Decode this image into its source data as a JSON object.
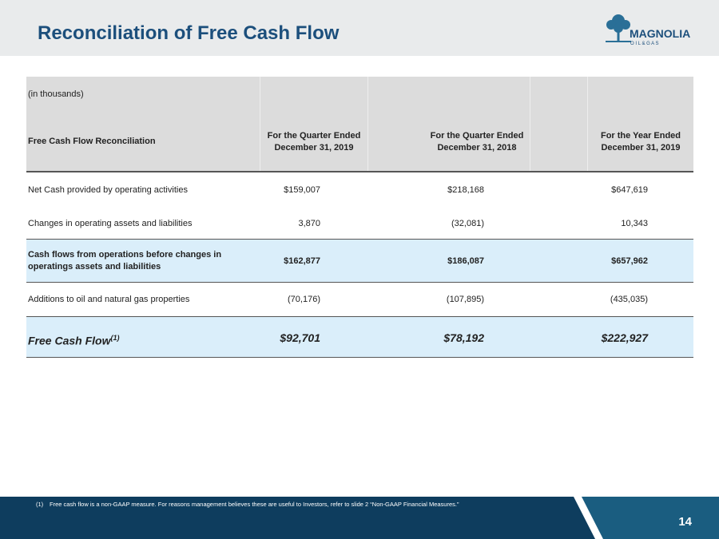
{
  "header": {
    "title": "Reconciliation of Free Cash Flow",
    "logo": {
      "name": "MAGNOLIA",
      "tagline": "O I L & G A S"
    }
  },
  "table": {
    "units": "(in thousands)",
    "columns": [
      [
        "Free Cash Flow Reconciliation"
      ],
      [
        "For the Quarter Ended",
        "December 31, 2019"
      ],
      [
        "For the Quarter Ended",
        "December 31, 2018"
      ],
      [
        "For the Year Ended",
        "December 31, 2019"
      ]
    ],
    "rows": [
      [
        "Net Cash provided by operating activities",
        "$159,007",
        "$218,168",
        "$647,619"
      ],
      [
        "Changes in operating assets and liabilities",
        "3,870",
        "(32,081)",
        "10,343"
      ],
      [
        "Cash flows from operations before changes in operatings assets and liabilities",
        "$162,877",
        "$186,087",
        "$657,962"
      ],
      [
        "Additions to oil and natural gas properties",
        "(70,176)",
        "(107,895)",
        "(435,035)"
      ],
      [
        "Free Cash Flow",
        "$92,701",
        "$78,192",
        "$222,927"
      ]
    ],
    "total_note": "(1)"
  },
  "footer": {
    "footnote_marker": "(1)",
    "footnote": "Free cash flow is a non-GAAP measure. For reasons management believes these are useful to Investors, refer to slide 2 “Non-GAAP Financial Measures.”",
    "page": "14"
  }
}
